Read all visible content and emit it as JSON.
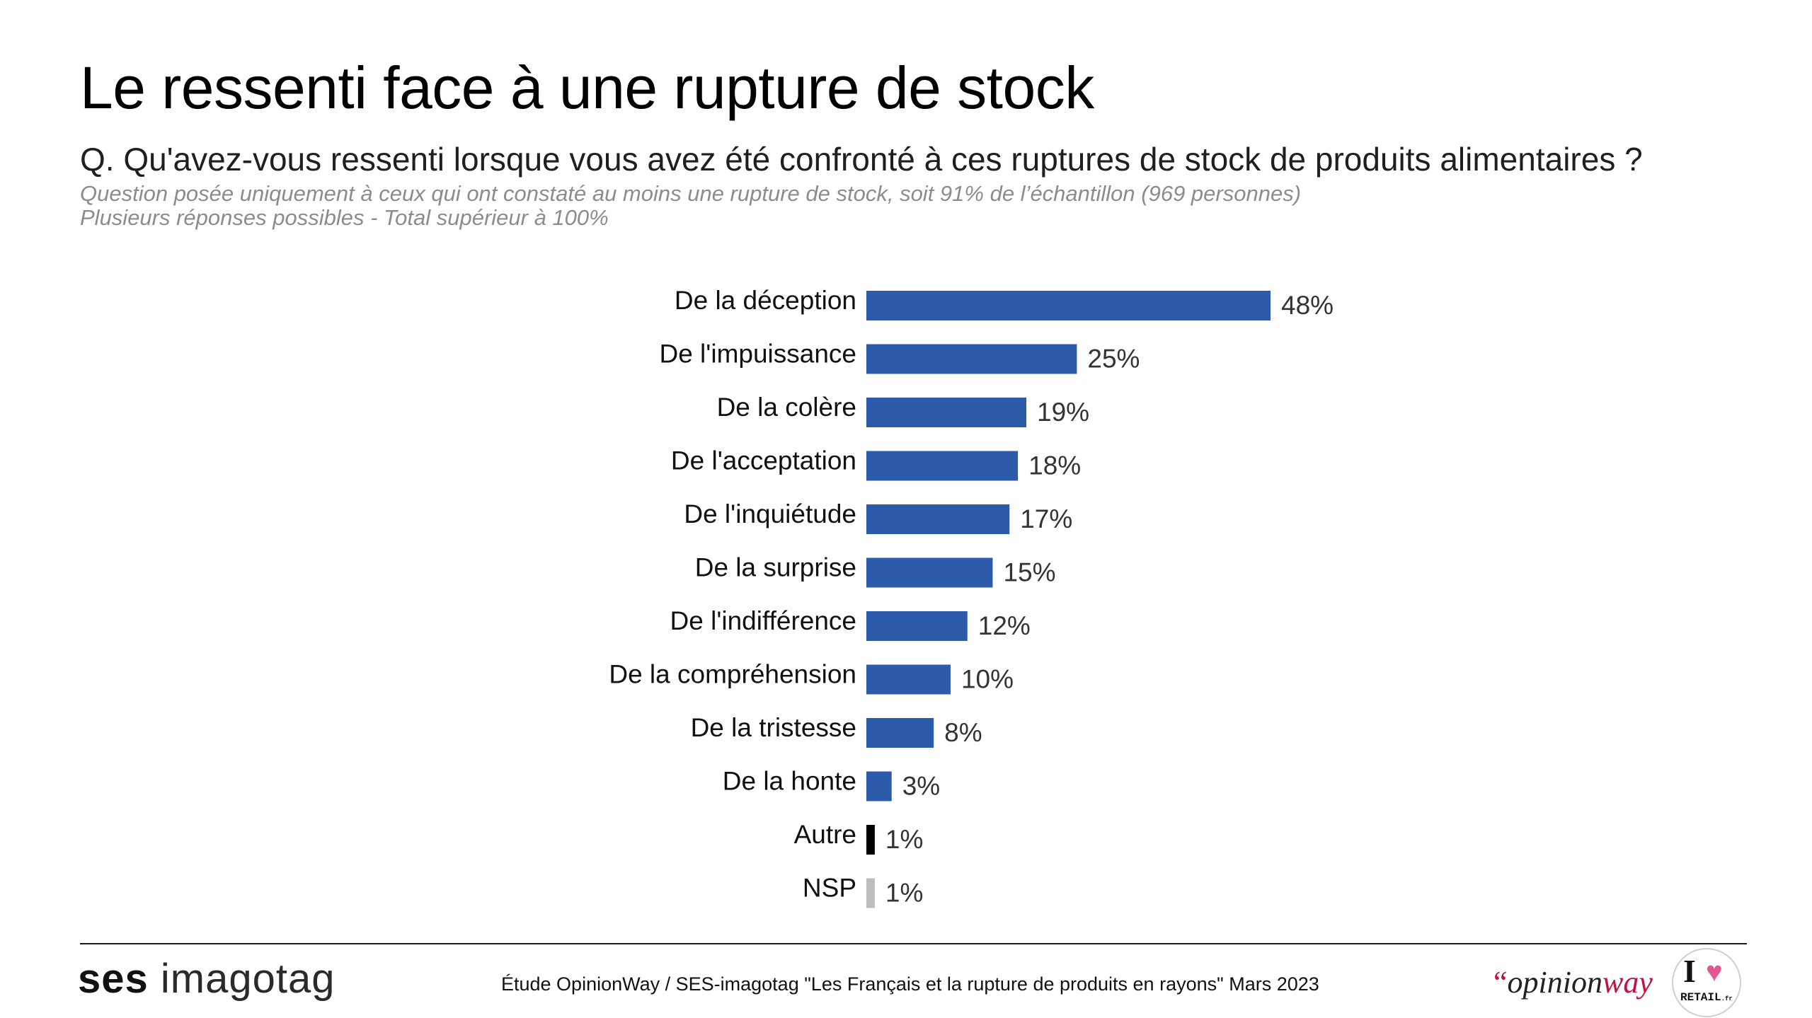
{
  "header": {
    "title": "Le ressenti face à une rupture de stock",
    "question": "Q. Qu'avez-vous ressenti lorsque vous avez été confronté à ces ruptures de stock de produits alimentaires ?",
    "note_line1": "Question posée uniquement à ceux qui ont constaté au moins une rupture de stock, soit 91% de l’échantillon (969 personnes)",
    "note_line2": "Plusieurs réponses possibles - Total supérieur à 100%"
  },
  "chart_data": {
    "type": "bar",
    "orientation": "horizontal",
    "categories": [
      "De la déception",
      "De l'impuissance",
      "De la colère",
      "De l'acceptation",
      "De l'inquiétude",
      "De la surprise",
      "De l'indifférence",
      "De la compréhension",
      "De la tristesse",
      "De la honte",
      "Autre",
      "NSP"
    ],
    "values": [
      48,
      25,
      19,
      18,
      17,
      15,
      12,
      10,
      8,
      3,
      1,
      1
    ],
    "value_labels": [
      "48%",
      "25%",
      "19%",
      "18%",
      "17%",
      "15%",
      "12%",
      "10%",
      "8%",
      "3%",
      "1%",
      "1%"
    ],
    "bar_colors": [
      "#2d5bab",
      "#2d5bab",
      "#2d5bab",
      "#2d5bab",
      "#2d5bab",
      "#2d5bab",
      "#2d5bab",
      "#2d5bab",
      "#2d5bab",
      "#2d5bab",
      "#000000",
      "#bdbdbd"
    ],
    "unit": "%",
    "xlim": [
      0,
      48
    ],
    "grid": false,
    "legend": "none"
  },
  "footer": {
    "brand_left_bold": "ses",
    "brand_left_light": "imagotag",
    "source": "Étude OpinionWay / SES-imagotag \"Les Français et la rupture de produits en rayons\" Mars 2023",
    "brand_right_quote": "“",
    "brand_right_text": "opinion",
    "brand_right_accent": "way",
    "badge_letter": "I",
    "badge_heart": "♥",
    "badge_word": "RETAIL",
    "badge_tld": ".fr"
  }
}
